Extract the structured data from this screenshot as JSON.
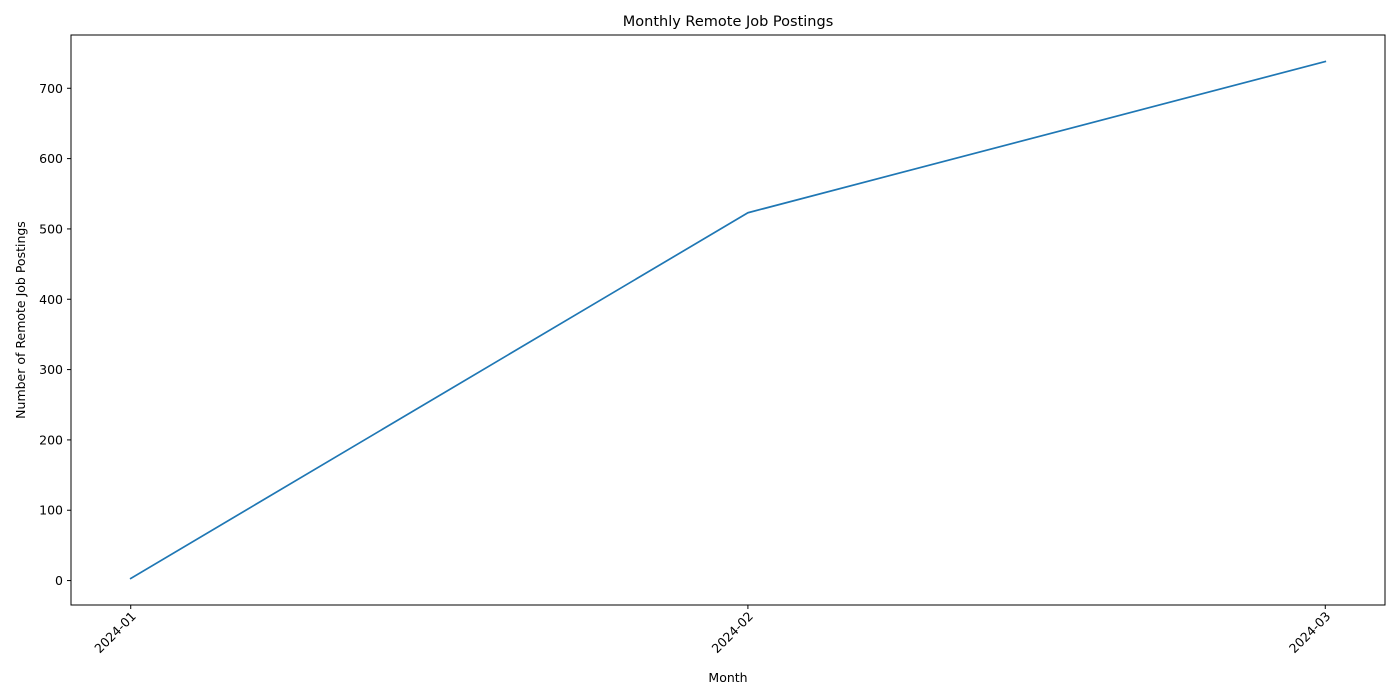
{
  "chart_data": {
    "type": "line",
    "title": "Monthly Remote Job Postings",
    "xlabel": "Month",
    "ylabel": "Number of Remote Job Postings",
    "x": [
      "2024-01",
      "2024-02",
      "2024-03"
    ],
    "series": [
      {
        "values": [
          3,
          523,
          738
        ],
        "color": "#1f77b4"
      }
    ],
    "xlim": [
      "2023-12-29",
      "2024-03-04"
    ],
    "ylim": [
      -34.75,
      775.75
    ],
    "yticks": [
      0,
      100,
      200,
      300,
      400,
      500,
      600,
      700
    ],
    "xticks": [
      "2024-01",
      "2024-02",
      "2024-03"
    ],
    "grid": false,
    "legend": "none"
  }
}
